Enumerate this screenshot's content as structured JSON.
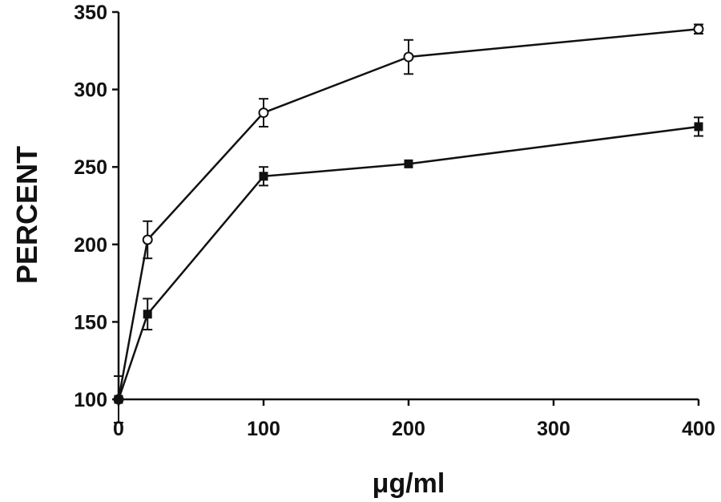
{
  "chart_data": {
    "type": "line",
    "title": "",
    "xlabel": "μg/ml",
    "ylabel": "PERCENT",
    "xlim": [
      0,
      400
    ],
    "ylim": [
      100,
      350
    ],
    "x_ticks": [
      "0",
      "100",
      "200",
      "300",
      "400"
    ],
    "y_ticks": [
      "100",
      "150",
      "200",
      "250",
      "300",
      "350"
    ],
    "grid": false,
    "legend": "none",
    "series": [
      {
        "marker": "open-circle",
        "color": "#111111",
        "points": [
          {
            "x": 0,
            "y": 100,
            "err": 15
          },
          {
            "x": 20,
            "y": 203,
            "err": 12
          },
          {
            "x": 100,
            "y": 285,
            "err": 9
          },
          {
            "x": 200,
            "y": 321,
            "err": 11
          },
          {
            "x": 400,
            "y": 339,
            "err": 3
          }
        ]
      },
      {
        "marker": "filled-square",
        "color": "#111111",
        "points": [
          {
            "x": 0,
            "y": 100,
            "err": 0
          },
          {
            "x": 20,
            "y": 155,
            "err": 10
          },
          {
            "x": 100,
            "y": 244,
            "err": 6
          },
          {
            "x": 200,
            "y": 252,
            "err": 0
          },
          {
            "x": 400,
            "y": 276,
            "err": 6
          }
        ]
      }
    ]
  }
}
